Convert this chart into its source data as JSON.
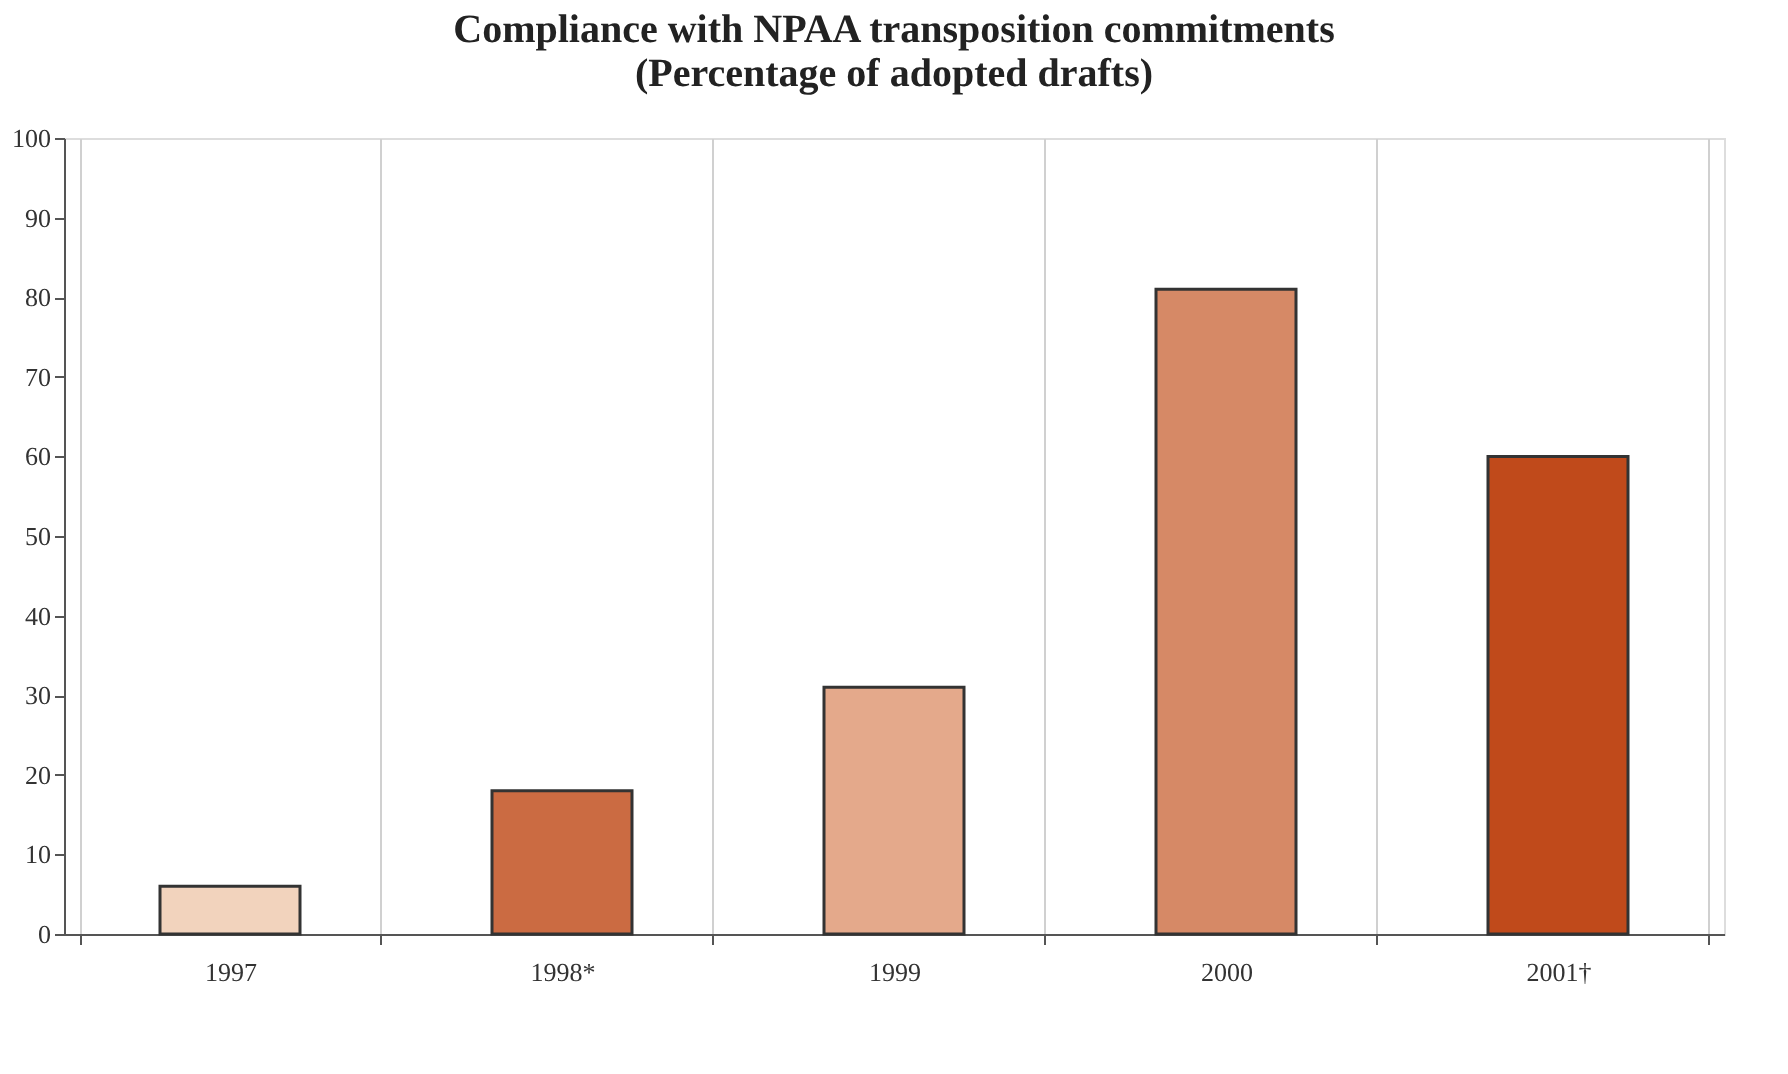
{
  "chart_data": {
    "type": "bar",
    "title": [
      "Compliance with NPAA transposition commitments",
      "(Percentage of adopted drafts)"
    ],
    "categories": [
      "1997",
      "1998*",
      "1999",
      "2000",
      "2001†"
    ],
    "values": [
      6,
      18,
      31,
      81,
      60
    ],
    "colors": [
      "#f2d3bd",
      "#cb6b42",
      "#e4a98b",
      "#d68966",
      "#c04a1b"
    ],
    "ylim": [
      0,
      100
    ],
    "yticks": [
      0,
      10,
      20,
      30,
      40,
      50,
      60,
      70,
      80,
      90,
      100
    ],
    "grid": "x"
  }
}
